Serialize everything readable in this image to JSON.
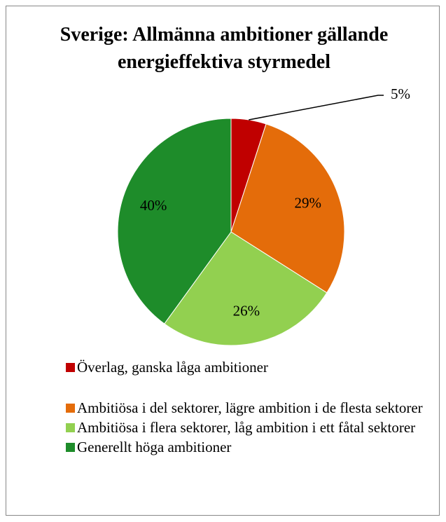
{
  "chart_data": {
    "type": "pie",
    "title": "Sverige: Allmänna ambitioner gällande energieffektiva styrmedel",
    "categories": [
      "Överlag, ganska låga ambitioner",
      "Ambitiösa i del sektorer, lägre ambition i de flesta sektorer",
      "Ambitiösa i flera sektorer, låg ambition i ett fåtal sektorer",
      "Generellt höga ambitioner"
    ],
    "values": [
      5,
      29,
      26,
      40
    ],
    "value_labels": [
      "5%",
      "29%",
      "26%",
      "40%"
    ],
    "colors": [
      "#c00000",
      "#e46c0a",
      "#92d050",
      "#1e8c2a"
    ],
    "legend": "bottom"
  }
}
